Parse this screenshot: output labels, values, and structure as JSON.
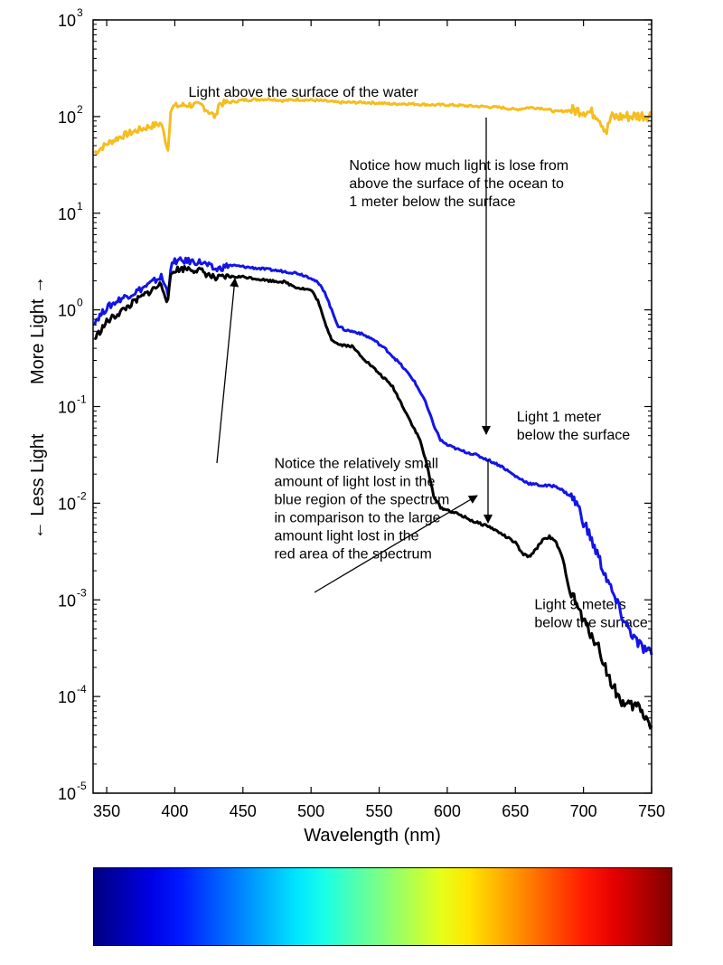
{
  "chart_data": {
    "type": "line",
    "title": "",
    "xlabel": "Wavelength (nm)",
    "ylabel_upper": "More Light →",
    "ylabel_lower": "← Less Light",
    "xlim": [
      340,
      750
    ],
    "ylim": [
      1e-05,
      1000
    ],
    "yscale": "log",
    "grid": false,
    "x_ticks": [
      350,
      400,
      450,
      500,
      550,
      600,
      650,
      700,
      750
    ],
    "y_ticks": [
      {
        "value": 1000,
        "base": "10",
        "exp": "3"
      },
      {
        "value": 100,
        "base": "10",
        "exp": "2"
      },
      {
        "value": 10,
        "base": "10",
        "exp": "1"
      },
      {
        "value": 1,
        "base": "10",
        "exp": "0"
      },
      {
        "value": 0.1,
        "base": "10",
        "exp": "-1"
      },
      {
        "value": 0.01,
        "base": "10",
        "exp": "-2"
      },
      {
        "value": 0.001,
        "base": "10",
        "exp": "-3"
      },
      {
        "value": 0.0001,
        "base": "10",
        "exp": "-4"
      },
      {
        "value": 1e-05,
        "base": "10",
        "exp": "-5"
      }
    ],
    "series": [
      {
        "name": "Light above the surface of the water",
        "color": "#f5bd1f",
        "points": [
          [
            341,
            42
          ],
          [
            350,
            52
          ],
          [
            360,
            62
          ],
          [
            370,
            70
          ],
          [
            380,
            78
          ],
          [
            390,
            85
          ],
          [
            395,
            45
          ],
          [
            397,
            120
          ],
          [
            400,
            128
          ],
          [
            410,
            132
          ],
          [
            420,
            130
          ],
          [
            430,
            98
          ],
          [
            432,
            135
          ],
          [
            440,
            140
          ],
          [
            450,
            148
          ],
          [
            460,
            150
          ],
          [
            470,
            152
          ],
          [
            480,
            146
          ],
          [
            490,
            150
          ],
          [
            500,
            148
          ],
          [
            510,
            145
          ],
          [
            520,
            140
          ],
          [
            530,
            140
          ],
          [
            540,
            140
          ],
          [
            550,
            138
          ],
          [
            560,
            135
          ],
          [
            570,
            136
          ],
          [
            580,
            134
          ],
          [
            590,
            132
          ],
          [
            600,
            132
          ],
          [
            610,
            130
          ],
          [
            620,
            128
          ],
          [
            630,
            126
          ],
          [
            640,
            124
          ],
          [
            650,
            118
          ],
          [
            660,
            124
          ],
          [
            670,
            122
          ],
          [
            680,
            112
          ],
          [
            690,
            116
          ],
          [
            700,
            115
          ],
          [
            710,
            105
          ],
          [
            717,
            70
          ],
          [
            720,
            98
          ],
          [
            730,
            100
          ],
          [
            740,
            102
          ],
          [
            750,
            104
          ]
        ]
      },
      {
        "name": "Light 1 meter below the surface",
        "color": "#1414e6",
        "points": [
          [
            341,
            0.75
          ],
          [
            350,
            1.05
          ],
          [
            360,
            1.3
          ],
          [
            370,
            1.5
          ],
          [
            380,
            1.8
          ],
          [
            390,
            2.2
          ],
          [
            395,
            1.5
          ],
          [
            397,
            2.7
          ],
          [
            400,
            3.2
          ],
          [
            410,
            3.2
          ],
          [
            420,
            3.1
          ],
          [
            430,
            2.6
          ],
          [
            440,
            2.9
          ],
          [
            450,
            2.8
          ],
          [
            460,
            2.7
          ],
          [
            470,
            2.6
          ],
          [
            480,
            2.5
          ],
          [
            490,
            2.4
          ],
          [
            500,
            2.15
          ],
          [
            505,
            1.9
          ],
          [
            510,
            1.55
          ],
          [
            515,
            1.0
          ],
          [
            520,
            0.68
          ],
          [
            525,
            0.62
          ],
          [
            535,
            0.58
          ],
          [
            545,
            0.5
          ],
          [
            555,
            0.39
          ],
          [
            565,
            0.28
          ],
          [
            575,
            0.19
          ],
          [
            583,
            0.12
          ],
          [
            590,
            0.065
          ],
          [
            595,
            0.045
          ],
          [
            600,
            0.04
          ],
          [
            610,
            0.035
          ],
          [
            620,
            0.032
          ],
          [
            630,
            0.028
          ],
          [
            640,
            0.024
          ],
          [
            650,
            0.019
          ],
          [
            660,
            0.016
          ],
          [
            670,
            0.0152
          ],
          [
            680,
            0.015
          ],
          [
            690,
            0.012
          ],
          [
            695,
            0.01
          ],
          [
            700,
            0.0065
          ],
          [
            710,
            0.003
          ],
          [
            720,
            0.0013
          ],
          [
            730,
            0.0006
          ],
          [
            740,
            0.00035
          ],
          [
            750,
            0.00027
          ]
        ]
      },
      {
        "name": "Light 9 meters below the surface",
        "color": "#000000",
        "points": [
          [
            341,
            0.5
          ],
          [
            350,
            0.75
          ],
          [
            360,
            0.95
          ],
          [
            370,
            1.2
          ],
          [
            380,
            1.5
          ],
          [
            390,
            1.85
          ],
          [
            395,
            1.2
          ],
          [
            397,
            2.3
          ],
          [
            400,
            2.6
          ],
          [
            410,
            2.7
          ],
          [
            420,
            2.5
          ],
          [
            430,
            2.1
          ],
          [
            440,
            2.2
          ],
          [
            450,
            2.2
          ],
          [
            460,
            2.1
          ],
          [
            470,
            2.0
          ],
          [
            480,
            1.95
          ],
          [
            490,
            1.7
          ],
          [
            500,
            1.6
          ],
          [
            505,
            1.25
          ],
          [
            510,
            0.75
          ],
          [
            515,
            0.5
          ],
          [
            520,
            0.44
          ],
          [
            530,
            0.42
          ],
          [
            540,
            0.3
          ],
          [
            550,
            0.22
          ],
          [
            560,
            0.16
          ],
          [
            570,
            0.085
          ],
          [
            580,
            0.045
          ],
          [
            585,
            0.025
          ],
          [
            590,
            0.012
          ],
          [
            595,
            0.009
          ],
          [
            600,
            0.0085
          ],
          [
            610,
            0.0075
          ],
          [
            620,
            0.0064
          ],
          [
            630,
            0.0058
          ],
          [
            640,
            0.0048
          ],
          [
            650,
            0.0039
          ],
          [
            655,
            0.003
          ],
          [
            660,
            0.0028
          ],
          [
            665,
            0.0033
          ],
          [
            670,
            0.0042
          ],
          [
            675,
            0.0045
          ],
          [
            680,
            0.0039
          ],
          [
            685,
            0.0026
          ],
          [
            690,
            0.0012
          ],
          [
            695,
            0.0009
          ],
          [
            700,
            0.0006
          ],
          [
            710,
            0.00035
          ],
          [
            720,
            0.00014
          ],
          [
            730,
            8e-05
          ],
          [
            740,
            8e-05
          ],
          [
            750,
            5e-05
          ]
        ]
      }
    ],
    "annotations": [
      {
        "id": "label-above",
        "lines": [
          "Light above the surface of the water"
        ],
        "x": 410,
        "y": 160,
        "anchor": "start"
      },
      {
        "id": "label-1m",
        "lines": [
          "Light 1 meter",
          "below the surface"
        ],
        "x": 651,
        "y": 0.07,
        "anchor": "start"
      },
      {
        "id": "label-9m",
        "lines": [
          "Light 9 meters",
          "below the surface"
        ],
        "x": 664,
        "y": 0.0008,
        "anchor": "start"
      },
      {
        "id": "note-loss",
        "lines": [
          "Notice how much light is lose from",
          "above the surface of the ocean to",
          "1 meter below the surface"
        ],
        "x": 528,
        "y": 28,
        "anchor": "start"
      },
      {
        "id": "note-blue-red",
        "lines": [
          "Notice the relatively small",
          "amount of light lost in the",
          "blue region of the spectrum",
          "in comparison to the large",
          "amount light lost in the",
          "red area of the spectrum"
        ],
        "x": 473,
        "y": 0.023,
        "anchor": "start"
      }
    ]
  }
}
